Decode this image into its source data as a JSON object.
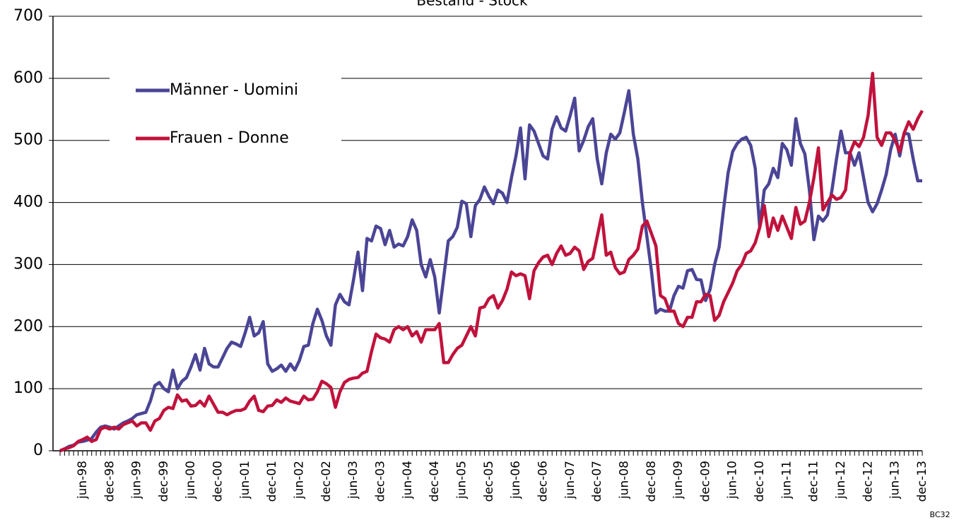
{
  "chart_data": {
    "type": "line",
    "title": "Bestand - Stock",
    "note": "BC32",
    "categories": [
      null,
      null,
      null,
      null,
      null,
      "jun-98",
      null,
      null,
      null,
      null,
      null,
      "dec-98",
      null,
      null,
      null,
      null,
      null,
      "jun-99",
      null,
      null,
      null,
      null,
      null,
      "dec-99",
      null,
      null,
      null,
      null,
      null,
      "jun-00",
      null,
      null,
      null,
      null,
      null,
      "dec-00",
      null,
      null,
      null,
      null,
      null,
      "jun-01",
      null,
      null,
      null,
      null,
      null,
      "dec-01",
      null,
      null,
      null,
      null,
      null,
      "jun-02",
      null,
      null,
      null,
      null,
      null,
      "dec-02",
      null,
      null,
      null,
      null,
      null,
      "jun-03",
      null,
      null,
      null,
      null,
      null,
      "dec-03",
      null,
      null,
      null,
      null,
      null,
      "jun-04",
      null,
      null,
      null,
      null,
      null,
      "dec-04",
      null,
      null,
      null,
      null,
      null,
      "jun-05",
      null,
      null,
      null,
      null,
      null,
      "dec-05",
      null,
      null,
      null,
      null,
      null,
      "jun-06",
      null,
      null,
      null,
      null,
      null,
      "dec-06",
      null,
      null,
      null,
      null,
      null,
      "jun-07",
      null,
      null,
      null,
      null,
      null,
      "dec-07",
      null,
      null,
      null,
      null,
      null,
      "jun-08",
      null,
      null,
      null,
      null,
      null,
      "dec-08",
      null,
      null,
      null,
      null,
      null,
      "jun-09",
      null,
      null,
      null,
      null,
      null,
      "dec-09",
      null,
      null,
      null,
      null,
      null,
      "jun-10",
      null,
      null,
      null,
      null,
      null,
      "dec-10",
      null,
      null,
      null,
      null,
      null,
      "jun-11",
      null,
      null,
      null,
      null,
      null,
      "dec-11",
      null,
      null,
      null,
      null,
      null,
      "jun-12",
      null,
      null,
      null,
      null,
      null,
      "dec-12",
      null,
      null,
      null,
      null,
      null,
      "jun-13",
      null,
      null,
      null,
      null,
      null,
      "dec-13"
    ],
    "series": [
      {
        "name": "Männer - Uomini",
        "color": "#4b4596",
        "values": [
          0,
          3,
          7,
          9,
          14,
          15,
          17,
          20,
          30,
          38,
          40,
          38,
          35,
          40,
          45,
          48,
          52,
          58,
          60,
          62,
          80,
          105,
          110,
          100,
          95,
          130,
          100,
          112,
          118,
          135,
          155,
          130,
          165,
          140,
          135,
          135,
          150,
          165,
          175,
          172,
          168,
          190,
          215,
          185,
          190,
          208,
          140,
          128,
          132,
          138,
          128,
          140,
          130,
          145,
          168,
          170,
          205,
          228,
          210,
          185,
          170,
          235,
          252,
          240,
          235,
          275,
          320,
          258,
          342,
          338,
          362,
          358,
          332,
          355,
          328,
          333,
          330,
          345,
          372,
          355,
          300,
          280,
          308,
          280,
          222,
          280,
          338,
          345,
          360,
          402,
          398,
          345,
          395,
          405,
          425,
          410,
          398,
          420,
          415,
          400,
          440,
          475,
          520,
          438,
          525,
          515,
          495,
          475,
          470,
          518,
          538,
          520,
          515,
          540,
          568,
          483,
          500,
          522,
          535,
          470,
          430,
          480,
          510,
          502,
          512,
          545,
          580,
          510,
          470,
          400,
          345,
          290,
          222,
          228,
          225,
          225,
          250,
          265,
          262,
          290,
          292,
          276,
          275,
          242,
          260,
          300,
          328,
          390,
          448,
          482,
          495,
          502,
          505,
          492,
          455,
          360,
          420,
          430,
          455,
          440,
          495,
          485,
          460,
          535,
          495,
          478,
          420,
          340,
          378,
          370,
          380,
          420,
          470,
          515,
          480,
          480,
          460,
          480,
          440,
          400,
          385,
          398,
          420,
          445,
          485,
          510,
          475,
          512,
          510,
          470,
          435,
          435
        ]
      },
      {
        "name": "Frauen - Donne",
        "color": "#c0123c",
        "values": [
          0,
          3,
          5,
          8,
          15,
          18,
          22,
          15,
          18,
          35,
          38,
          35,
          38,
          35,
          42,
          45,
          48,
          40,
          45,
          45,
          33,
          48,
          52,
          65,
          70,
          68,
          90,
          80,
          82,
          72,
          73,
          80,
          72,
          88,
          75,
          62,
          62,
          58,
          62,
          65,
          65,
          68,
          80,
          88,
          65,
          63,
          72,
          73,
          82,
          78,
          85,
          80,
          78,
          76,
          88,
          82,
          83,
          95,
          112,
          108,
          102,
          70,
          95,
          110,
          115,
          117,
          118,
          125,
          128,
          160,
          188,
          182,
          180,
          175,
          195,
          200,
          195,
          200,
          185,
          192,
          175,
          195,
          195,
          195,
          205,
          142,
          142,
          155,
          165,
          170,
          185,
          200,
          185,
          230,
          232,
          245,
          250,
          230,
          242,
          260,
          288,
          282,
          285,
          282,
          245,
          290,
          303,
          312,
          315,
          300,
          318,
          330,
          315,
          318,
          328,
          322,
          292,
          305,
          310,
          345,
          380,
          315,
          320,
          295,
          285,
          288,
          308,
          315,
          325,
          362,
          370,
          350,
          330,
          250,
          245,
          225,
          225,
          205,
          200,
          215,
          215,
          240,
          240,
          252,
          250,
          210,
          218,
          240,
          255,
          270,
          290,
          300,
          318,
          322,
          335,
          360,
          395,
          345,
          375,
          355,
          378,
          360,
          342,
          392,
          365,
          370,
          400,
          440,
          488,
          388,
          400,
          412,
          405,
          408,
          420,
          480,
          498,
          490,
          505,
          540,
          608,
          505,
          492,
          512,
          512,
          500,
          482,
          512,
          530,
          518,
          535,
          548
        ]
      }
    ],
    "ylim": [
      0,
      700
    ],
    "yticks": [
      0,
      100,
      200,
      300,
      400,
      500,
      600,
      700
    ],
    "grid": true
  }
}
